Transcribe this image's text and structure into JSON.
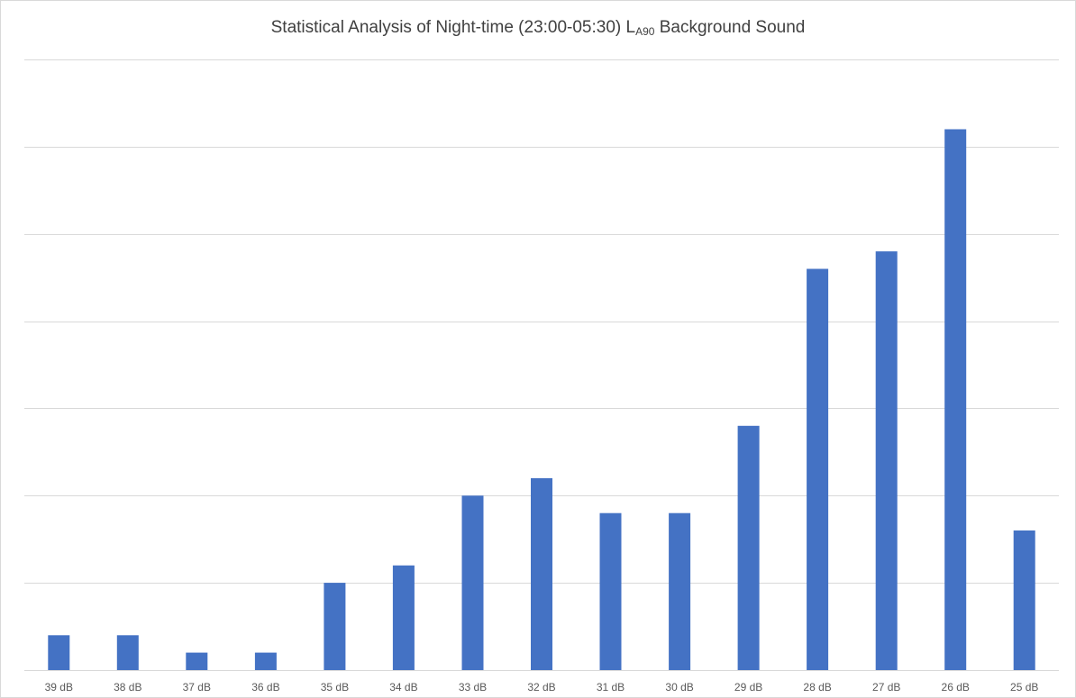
{
  "chart_data": {
    "type": "bar",
    "title": {
      "prefix": "Statistical Analysis of Night-time (23:00-05:30) L",
      "subscript": "A90",
      "suffix": " Background Sound"
    },
    "categories": [
      "39 dB",
      "38 dB",
      "37 dB",
      "36 dB",
      "35 dB",
      "34 dB",
      "33 dB",
      "32 dB",
      "31 dB",
      "30 dB",
      "29 dB",
      "28 dB",
      "27 dB",
      "26 dB",
      "25 dB"
    ],
    "values": [
      2,
      2,
      1,
      1,
      5,
      6,
      10,
      11,
      9,
      9,
      14,
      23,
      24,
      31,
      8
    ],
    "ylim": [
      0,
      35
    ],
    "gridline_step": 5,
    "grid": true,
    "y_tick_labels_visible": false,
    "xlabel": "",
    "ylabel": "",
    "bar_color": "#4472C4",
    "grid_color": "#d9d9d9"
  }
}
